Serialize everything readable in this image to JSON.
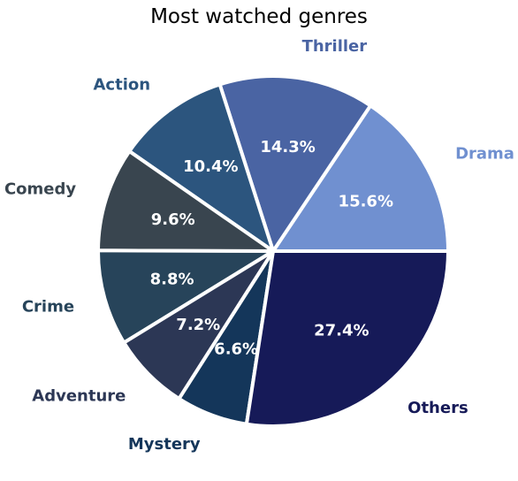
{
  "chart_data": {
    "type": "pie",
    "title": "Most watched genres",
    "start_angle_deg": 0,
    "direction": "counterclockwise",
    "slices": [
      {
        "label": "Drama",
        "value": 15.6,
        "pct_label": "15.6%",
        "color": "#7090d0"
      },
      {
        "label": "Thriller",
        "value": 14.3,
        "pct_label": "14.3%",
        "color": "#4a64a3"
      },
      {
        "label": "Action",
        "value": 10.4,
        "pct_label": "10.4%",
        "color": "#2c557e"
      },
      {
        "label": "Comedy",
        "value": 9.6,
        "pct_label": "9.6%",
        "color": "#39454f"
      },
      {
        "label": "Crime",
        "value": 8.8,
        "pct_label": "8.8%",
        "color": "#27445a"
      },
      {
        "label": "Adventure",
        "value": 7.2,
        "pct_label": "7.2%",
        "color": "#2c3755"
      },
      {
        "label": "Mystery",
        "value": 6.6,
        "pct_label": "6.6%",
        "color": "#14365a"
      },
      {
        "label": "Others",
        "value": 27.4,
        "pct_label": "27.4%",
        "color": "#161a58"
      }
    ]
  }
}
